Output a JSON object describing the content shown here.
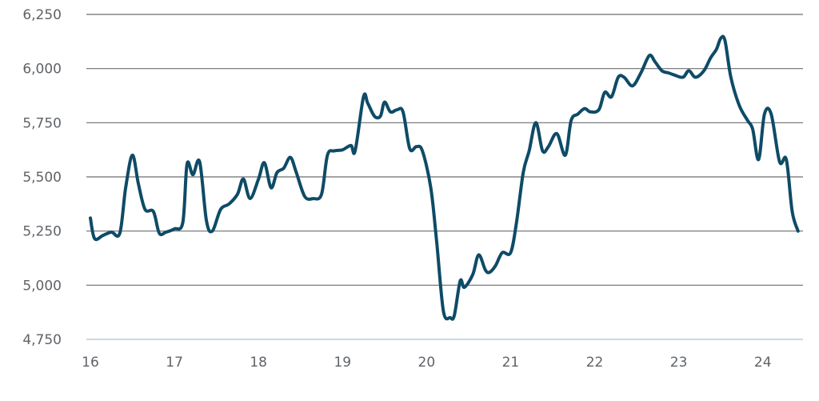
{
  "chart_data": {
    "type": "line",
    "title": "",
    "xlabel": "",
    "ylabel": "",
    "xlim": [
      16,
      24.45
    ],
    "ylim": [
      4750,
      6250
    ],
    "x_ticks": [
      16,
      17,
      18,
      19,
      20,
      21,
      22,
      23,
      24
    ],
    "x_tick_labels": [
      "16",
      "17",
      "18",
      "19",
      "20",
      "21",
      "22",
      "23",
      "24"
    ],
    "y_ticks": [
      4750,
      5000,
      5250,
      5500,
      5750,
      6000,
      6250
    ],
    "y_tick_labels": [
      "4,750",
      "5,000",
      "5,250",
      "5,500",
      "5,750",
      "6,000",
      "6,250"
    ],
    "grid": "horizontal",
    "color": "#0e4b66",
    "series": [
      {
        "x": [
          16.0,
          16.05,
          16.15,
          16.25,
          16.35,
          16.42,
          16.5,
          16.57,
          16.65,
          16.75,
          16.82,
          16.9,
          17.0,
          17.1,
          17.15,
          17.22,
          17.3,
          17.38,
          17.45,
          17.55,
          17.65,
          17.75,
          17.82,
          17.9,
          18.0,
          18.07,
          18.15,
          18.22,
          18.3,
          18.38,
          18.45,
          18.55,
          18.65,
          18.75,
          18.82,
          18.9,
          19.0,
          19.1,
          19.15,
          19.25,
          19.3,
          19.38,
          19.45,
          19.5,
          19.57,
          19.65,
          19.72,
          19.8,
          19.88,
          19.95,
          20.05,
          20.12,
          20.2,
          20.28,
          20.33,
          20.4,
          20.45,
          20.55,
          20.62,
          20.7,
          20.75,
          20.82,
          20.9,
          21.0,
          21.07,
          21.15,
          21.22,
          21.3,
          21.38,
          21.45,
          21.55,
          21.65,
          21.72,
          21.8,
          21.88,
          21.95,
          22.05,
          22.12,
          22.2,
          22.28,
          22.35,
          22.45,
          22.55,
          22.65,
          22.72,
          22.8,
          22.88,
          22.95,
          23.05,
          23.12,
          23.2,
          23.3,
          23.38,
          23.45,
          23.5,
          23.55,
          23.62,
          23.72,
          23.82,
          23.88,
          23.95,
          24.02,
          24.1,
          24.2,
          24.28,
          24.35,
          24.42
        ],
        "y": [
          5310,
          5215,
          5230,
          5245,
          5240,
          5450,
          5600,
          5470,
          5350,
          5340,
          5240,
          5245,
          5260,
          5290,
          5560,
          5510,
          5570,
          5300,
          5250,
          5350,
          5375,
          5420,
          5490,
          5400,
          5490,
          5565,
          5450,
          5520,
          5540,
          5590,
          5520,
          5410,
          5400,
          5420,
          5600,
          5620,
          5625,
          5645,
          5620,
          5870,
          5840,
          5780,
          5780,
          5845,
          5800,
          5810,
          5800,
          5630,
          5640,
          5620,
          5450,
          5200,
          4880,
          4850,
          4860,
          5020,
          4990,
          5050,
          5140,
          5070,
          5060,
          5090,
          5150,
          5150,
          5290,
          5520,
          5620,
          5750,
          5620,
          5640,
          5700,
          5600,
          5760,
          5790,
          5815,
          5800,
          5810,
          5890,
          5870,
          5960,
          5960,
          5920,
          5980,
          6060,
          6030,
          5990,
          5980,
          5970,
          5960,
          5990,
          5960,
          5990,
          6050,
          6090,
          6140,
          6130,
          5960,
          5830,
          5760,
          5720,
          5580,
          5790,
          5790,
          5570,
          5580,
          5340,
          5250
        ]
      }
    ]
  }
}
